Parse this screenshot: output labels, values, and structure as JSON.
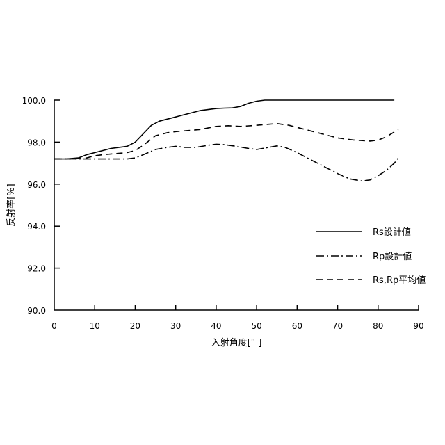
{
  "chart_data": {
    "type": "line",
    "title": "",
    "xlabel": "入射角度[° ]",
    "ylabel": "反射率[%]",
    "xlim": [
      0,
      90
    ],
    "ylim": [
      90.0,
      100.0
    ],
    "x_ticks": [
      "0",
      "10",
      "20",
      "30",
      "40",
      "50",
      "60",
      "70",
      "80",
      "90"
    ],
    "y_ticks": [
      "90.0",
      "92.0",
      "94.0",
      "96.0",
      "98.0",
      "100.0"
    ],
    "grid": false,
    "legend_position": "bottom-right",
    "series": [
      {
        "name": "Rs設計値",
        "style": "solid",
        "color": "#000000",
        "x": [
          0,
          3,
          6,
          8,
          10,
          12,
          14,
          16,
          18,
          20,
          22,
          24,
          26,
          28,
          30,
          32,
          34,
          36,
          38,
          40,
          42,
          44,
          46,
          48,
          50,
          52,
          54,
          56,
          60,
          65,
          70,
          75,
          80,
          84
        ],
        "y": [
          97.2,
          97.2,
          97.25,
          97.4,
          97.5,
          97.6,
          97.7,
          97.75,
          97.8,
          98.0,
          98.4,
          98.8,
          99.0,
          99.1,
          99.2,
          99.3,
          99.4,
          99.5,
          99.55,
          99.6,
          99.62,
          99.63,
          99.7,
          99.85,
          99.95,
          100.0,
          100.0,
          100.0,
          100.0,
          100.0,
          100.0,
          100.0,
          100.0,
          100.0
        ]
      },
      {
        "name": "Rp設計値",
        "style": "dashdot",
        "color": "#000000",
        "x": [
          0,
          5,
          10,
          15,
          18,
          20,
          22,
          25,
          28,
          30,
          32,
          35,
          38,
          40,
          42,
          45,
          48,
          50,
          53,
          55,
          57,
          60,
          63,
          66,
          70,
          73,
          76,
          78,
          80,
          82,
          84,
          85
        ],
        "y": [
          97.2,
          97.2,
          97.2,
          97.2,
          97.2,
          97.25,
          97.4,
          97.65,
          97.75,
          97.8,
          97.75,
          97.75,
          97.85,
          97.9,
          97.88,
          97.8,
          97.7,
          97.65,
          97.75,
          97.82,
          97.75,
          97.5,
          97.2,
          96.9,
          96.5,
          96.25,
          96.15,
          96.2,
          96.4,
          96.65,
          97.0,
          97.25
        ]
      },
      {
        "name": "Rs,Rp平均値",
        "style": "dashed",
        "color": "#000000",
        "x": [
          0,
          5,
          8,
          10,
          12,
          15,
          18,
          20,
          22,
          25,
          28,
          30,
          33,
          36,
          40,
          43,
          46,
          50,
          53,
          55,
          58,
          62,
          66,
          70,
          74,
          78,
          80,
          82,
          85
        ],
        "y": [
          97.2,
          97.2,
          97.25,
          97.35,
          97.4,
          97.45,
          97.5,
          97.6,
          97.85,
          98.3,
          98.45,
          98.5,
          98.55,
          98.6,
          98.75,
          98.78,
          98.75,
          98.8,
          98.85,
          98.88,
          98.8,
          98.6,
          98.4,
          98.2,
          98.1,
          98.05,
          98.1,
          98.25,
          98.6
        ]
      }
    ]
  }
}
